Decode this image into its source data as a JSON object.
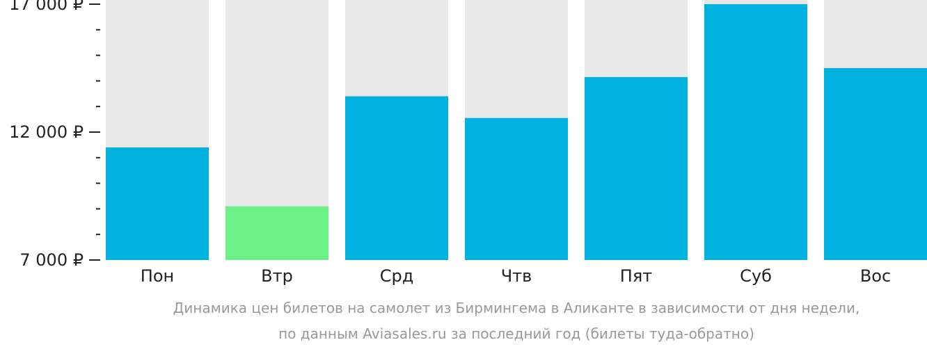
{
  "chart_data": {
    "type": "bar",
    "categories": [
      "Пон",
      "Втр",
      "Срд",
      "Чтв",
      "Пят",
      "Суб",
      "Вос"
    ],
    "values": [
      11400,
      9100,
      13400,
      12550,
      14150,
      17000,
      14500
    ],
    "highlight_index": 1,
    "ylim": [
      7000,
      17000
    ],
    "y_major_ticks": [
      {
        "value": 7000,
        "label": "7 000 ₽"
      },
      {
        "value": 12000,
        "label": "12 000 ₽"
      },
      {
        "value": 17000,
        "label": "17 000 ₽"
      }
    ],
    "y_minor_step": 1000,
    "caption_lines": [
      "Динамика цен билетов на самолет из Бирмингема в Аликанте в зависимости от дня недели,",
      "по данным Aviasales.ru за последний год (билеты туда-обратно)"
    ],
    "colors": {
      "bar": "#00b0dd",
      "bar_highlight": "#6cf287",
      "bar_background": "#e8e8e8",
      "axis": "#222222",
      "caption": "#999999"
    },
    "grid": false,
    "legend": "none"
  }
}
